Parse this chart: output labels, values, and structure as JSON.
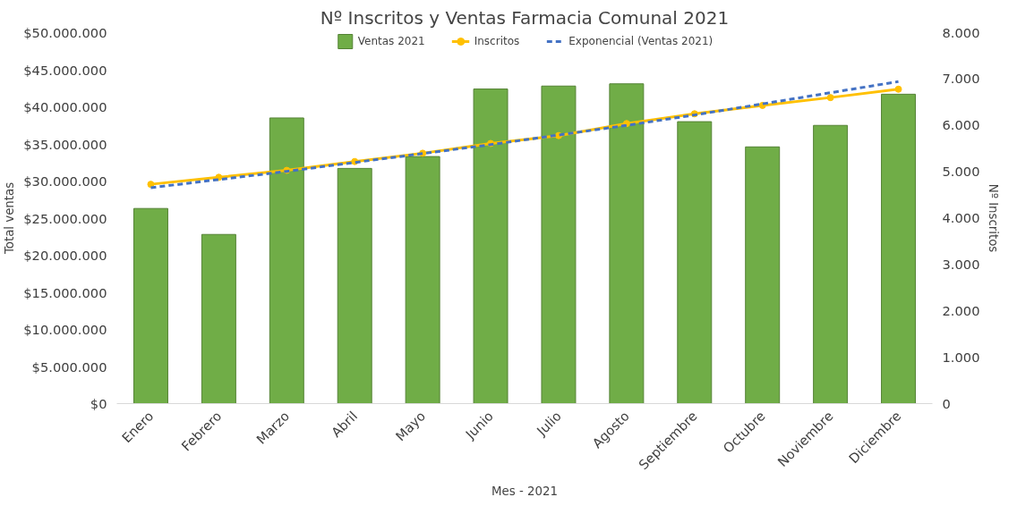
{
  "chart_data": {
    "type": "bar",
    "title": "Nº Inscritos y Ventas Farmacia Comunal 2021",
    "xlabel": "Mes - 2021",
    "ylabel": "Total ventas",
    "y2label": "Nº Inscritos",
    "categories": [
      "Enero",
      "Febrero",
      "Marzo",
      "Abril",
      "Mayo",
      "Junio",
      "Julio",
      "Agosto",
      "Septiembre",
      "Octubre",
      "Noviembre",
      "Diciembre"
    ],
    "series": [
      {
        "name": "Ventas 2021",
        "color": "#70ad47",
        "values": [
          26300000,
          22800000,
          38500000,
          31700000,
          33300000,
          42400000,
          42800000,
          43100000,
          38000000,
          34600000,
          37500000,
          41700000
        ]
      },
      {
        "name": "Inscritos",
        "type": "line",
        "axis": "y2",
        "color": "#ffc000",
        "marker": "circle",
        "line_style": "solid",
        "values": [
          4730,
          4880,
          5030,
          5220,
          5400,
          5610,
          5780,
          6040,
          6250,
          6430,
          6600,
          6780
        ]
      },
      {
        "name": "Exponencial (Ventas 2021)",
        "type": "line",
        "color": "#4472c4",
        "marker": "none",
        "line_style": "dashed",
        "values": [
          29100000,
          30200000,
          31300000,
          32500000,
          33700000,
          34900000,
          36200000,
          37500000,
          38900000,
          40400000,
          41900000,
          43400000
        ]
      }
    ],
    "ylim": [
      0,
      50000000
    ],
    "yticks": [
      {
        "value": 0,
        "label": "$0"
      },
      {
        "value": 5000000,
        "label": "$5.000.000"
      },
      {
        "value": 10000000,
        "label": "$10.000.000"
      },
      {
        "value": 15000000,
        "label": "$15.000.000"
      },
      {
        "value": 20000000,
        "label": "$20.000.000"
      },
      {
        "value": 25000000,
        "label": "$25.000.000"
      },
      {
        "value": 30000000,
        "label": "$30.000.000"
      },
      {
        "value": 35000000,
        "label": "$35.000.000"
      },
      {
        "value": 40000000,
        "label": "$40.000.000"
      },
      {
        "value": 45000000,
        "label": "$45.000.000"
      },
      {
        "value": 50000000,
        "label": "$50.000.000"
      }
    ],
    "y2lim": [
      0,
      8000
    ],
    "y2ticks": [
      0,
      {
        "value": 1000,
        "label": "1.000"
      },
      {
        "value": 2000,
        "label": "2.000"
      },
      {
        "value": 3000,
        "label": "3.000"
      },
      {
        "value": 4000,
        "label": "4.000"
      },
      {
        "value": 5000,
        "label": "5.000"
      },
      {
        "value": 6000,
        "label": "6.000"
      },
      {
        "value": 7000,
        "label": "7.000"
      },
      {
        "value": 8000,
        "label": "8.000"
      }
    ],
    "grid": false,
    "legend": "top"
  }
}
